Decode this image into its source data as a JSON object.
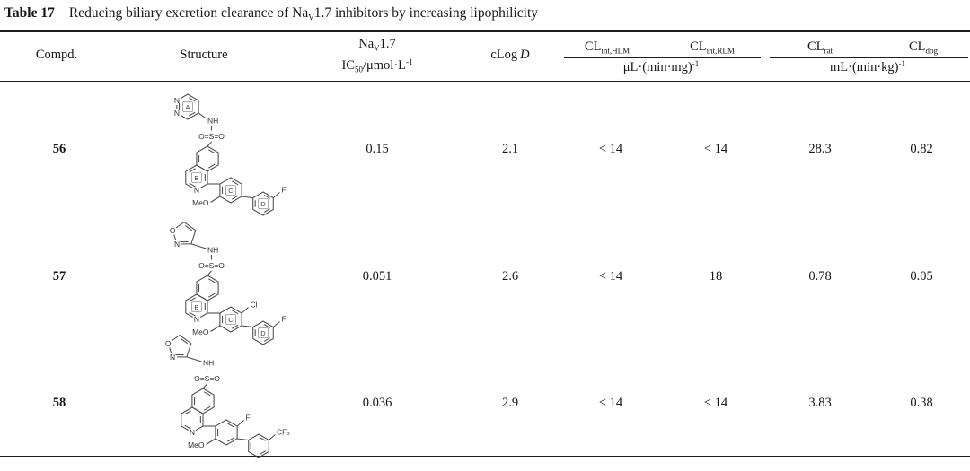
{
  "title": {
    "label": "Table 17",
    "pre": "Reducing biliary excretion clearance of Na",
    "sub": "V",
    "post": "1.7 inhibitors by increasing lipophilicity"
  },
  "header": {
    "compd": "Compd.",
    "structure": "Structure",
    "nav": {
      "pre": "Na",
      "sub": "V",
      "post": "1.7"
    },
    "ic50": {
      "pre": "IC",
      "sub": "50",
      "mid": "/μmol·L",
      "sup": "-1"
    },
    "clogd": {
      "pre": "cLog",
      "it": "D"
    },
    "cl_hlm": {
      "pre": "CL",
      "sub": "int,HLM"
    },
    "cl_rlm": {
      "pre": "CL",
      "sub": "int,RLM"
    },
    "cl_rat": {
      "pre": "CL",
      "sub": "rat"
    },
    "cl_dog": {
      "pre": "CL",
      "sub": "dog"
    },
    "unit_microsomal": {
      "pre": "μL·(min·mg)",
      "sup": "-1"
    },
    "unit_invivo": {
      "pre": "mL·(min·kg)",
      "sup": "-1"
    }
  },
  "rows": [
    {
      "compd": "56",
      "ic50": "0.15",
      "clogd": "2.1",
      "cl_hlm": "< 14",
      "cl_rlm": "< 14",
      "cl_rat": "28.3",
      "cl_dog": "0.82",
      "structure": {
        "ring_a": "A",
        "ring_b": "B",
        "ring_c": "C",
        "ring_d": "D",
        "n_top": "N",
        "n_bot": "N",
        "n_iso": "N",
        "nh": "NH",
        "sulfonyl": "O=S=O",
        "meo": "MeO",
        "f": "F"
      }
    },
    {
      "compd": "57",
      "ic50": "0.051",
      "clogd": "2.6",
      "cl_hlm": "< 14",
      "cl_rlm": "18",
      "cl_rat": "0.78",
      "cl_dog": "0.05",
      "structure": {
        "o": "O",
        "n": "N",
        "ring_b": "B",
        "ring_c": "C",
        "ring_d": "D",
        "n_iso": "N",
        "nh": "NH",
        "sulfonyl": "O=S=O",
        "cl": "Cl",
        "meo": "MeO",
        "f": "F"
      }
    },
    {
      "compd": "58",
      "ic50": "0.036",
      "clogd": "2.9",
      "cl_hlm": "< 14",
      "cl_rlm": "< 14",
      "cl_rat": "3.83",
      "cl_dog": "0.38",
      "structure": {
        "o": "O",
        "n": "N",
        "n_iso": "N",
        "nh": "NH",
        "sulfonyl": "O=S=O",
        "f": "F",
        "meo": "MeO",
        "cf3": "CF₃"
      }
    }
  ]
}
